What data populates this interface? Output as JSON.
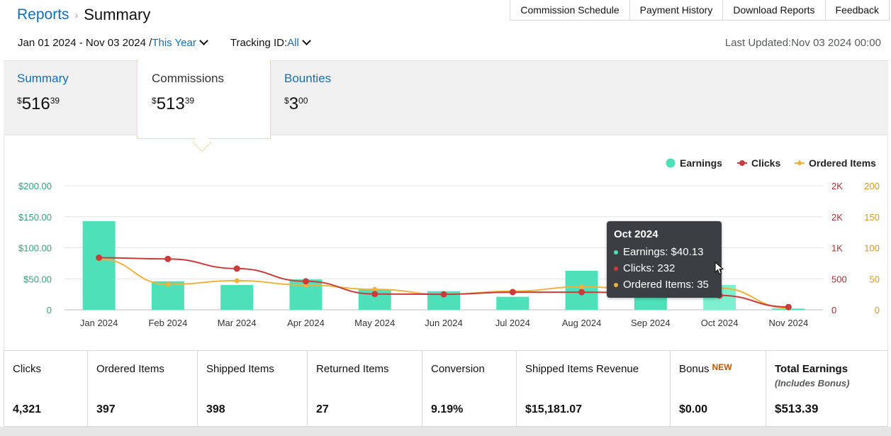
{
  "breadcrumb": {
    "parent": "Reports",
    "separator": "›",
    "current": "Summary"
  },
  "top_tabs": [
    "Commission Schedule",
    "Payment History",
    "Download Reports",
    "Feedback"
  ],
  "filters": {
    "date_range": "Jan 01 2024 - Nov 03 2024 /",
    "period": "This Year",
    "tracking_label": "Tracking ID:",
    "tracking_value": "All"
  },
  "last_updated": "Last Updated:Nov 03 2024 00:00",
  "cards": {
    "summary": {
      "label": "Summary",
      "currency": "$",
      "whole": "516",
      "cents": "39"
    },
    "commissions": {
      "label": "Commissions",
      "currency": "$",
      "whole": "513",
      "cents": "39"
    },
    "bounties": {
      "label": "Bounties",
      "currency": "$",
      "whole": "3",
      "cents": "00"
    }
  },
  "chart_data": {
    "type": "bar",
    "categories": [
      "Jan 2024",
      "Feb 2024",
      "Mar 2024",
      "Apr 2024",
      "May 2024",
      "Jun 2024",
      "Jul 2024",
      "Aug 2024",
      "Sep 2024",
      "Oct 2024",
      "Nov 2024"
    ],
    "series": [
      {
        "name": "Earnings",
        "type": "bar",
        "axis": "left",
        "color": "#4ee0b9",
        "values": [
          143,
          46,
          40,
          49,
          33,
          30,
          21,
          63,
          28,
          40.13,
          2
        ]
      },
      {
        "name": "Clicks",
        "type": "line",
        "axis": "right1",
        "color": "#cc3b3b",
        "values": [
          840,
          820,
          665,
          460,
          255,
          250,
          285,
          285,
          275,
          232,
          45
        ]
      },
      {
        "name": "Ordered Items",
        "type": "line",
        "axis": "right2",
        "color": "#f0b23a",
        "values": [
          82,
          41,
          47,
          40,
          33,
          25,
          30,
          37,
          33,
          35,
          3
        ]
      }
    ],
    "left_axis": {
      "ticks": [
        "$200.00",
        "$150.00",
        "$100.00",
        "$50.00",
        "0"
      ],
      "range": [
        0,
        200
      ]
    },
    "right_axis_1": {
      "ticks": [
        "2K",
        "2K",
        "1K",
        "500",
        "0"
      ],
      "range": [
        0,
        2000
      ]
    },
    "right_axis_2": {
      "ticks": [
        "200",
        "150",
        "100",
        "50",
        "0"
      ],
      "range": [
        0,
        200
      ]
    },
    "legend_position": "top-right",
    "grid": true
  },
  "tooltip": {
    "title": "Oct 2024",
    "rows": [
      {
        "text": "Earnings: $40.13",
        "color": "#4ee0b9"
      },
      {
        "text": "Clicks: 232",
        "color": "#cc3b3b"
      },
      {
        "text": "Ordered Items: 35",
        "color": "#f0b23a"
      }
    ]
  },
  "stats": [
    {
      "label": "Clicks",
      "value": "4,321"
    },
    {
      "label": "Ordered Items",
      "value": "397"
    },
    {
      "label": "Shipped Items",
      "value": "398"
    },
    {
      "label": "Returned Items",
      "value": "27"
    },
    {
      "label": "Conversion",
      "value": "9.19%"
    },
    {
      "label": "Shipped Items Revenue",
      "value": "$15,181.07"
    },
    {
      "label": "Bonus",
      "badge": "NEW",
      "value": "$0.00"
    },
    {
      "label": "Total Earnings",
      "sub": "(Includes Bonus)",
      "value": "$513.39"
    }
  ]
}
